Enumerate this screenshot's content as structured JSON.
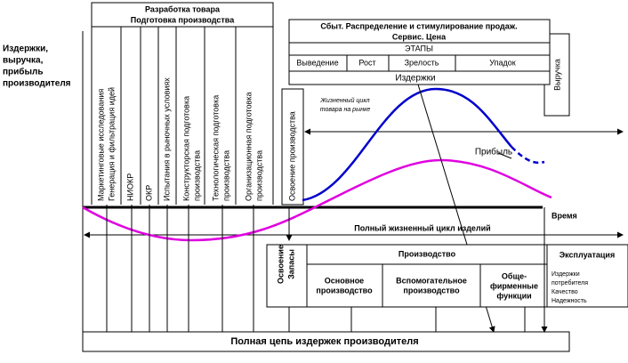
{
  "axis": {
    "y_label": [
      "Издержки,",
      "выручка,",
      "прибыль",
      "производителя"
    ],
    "x_label": "Время"
  },
  "development": {
    "title": [
      "Разработка товара",
      "Подготовка производства"
    ],
    "columns": [
      [
        "Маркетинговые исследования",
        "Генерация и фильтрация идей"
      ],
      [
        "НИОКР"
      ],
      [
        "ОКР"
      ],
      [
        "Испытания в рыночных условиях"
      ],
      [
        "Конструкторская подготовка",
        "производства"
      ],
      [
        "Технологическая подготовка",
        "производства"
      ],
      [
        "Организационная подготовка",
        "производства"
      ]
    ],
    "launch": "Освоение производства"
  },
  "market": {
    "title": [
      "Сбыт.  Распределение и стимулирование продаж.",
      "Сервис. Цена"
    ],
    "stages_title": "ЭТАПЫ",
    "stages": [
      "Выведение",
      "Рост",
      "Зрелость",
      "Упадок"
    ],
    "costs": "Издержки",
    "revenue": "Выручка",
    "cycle": [
      "Жизненный цикл",
      "товара на рынке"
    ]
  },
  "profit": "Прибыль",
  "full_cycle": "Полный жизненный цикл изделий",
  "operations": {
    "left": [
      "Освоение",
      "Запасы"
    ],
    "production": "Производство",
    "units": [
      [
        "Основное",
        "производство"
      ],
      [
        "Вспомогательное",
        "производство"
      ],
      [
        "Обще-",
        "фирменные",
        "функции"
      ]
    ],
    "exploitation": "Эксплуатация",
    "exploitation_items": [
      "Издержки",
      "потребителя",
      "Качество",
      "Надежность"
    ]
  },
  "footer": "Полная цепь издержек производителя"
}
